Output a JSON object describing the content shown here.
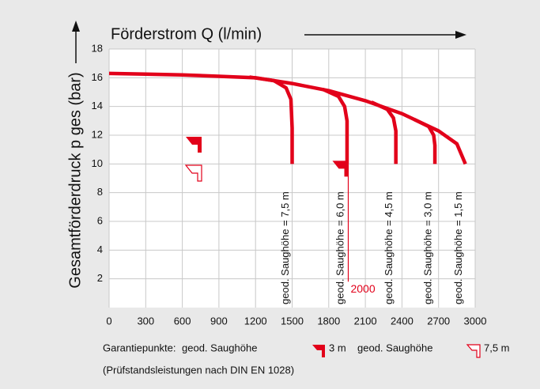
{
  "chart_data": {
    "type": "line",
    "x_label": "Förderstrom Q (l/min)",
    "y_label": "Gesamtförderdruck p ges (bar)",
    "xlim": [
      0,
      3000
    ],
    "ylim": [
      0,
      18
    ],
    "xticks": [
      0,
      300,
      600,
      900,
      1200,
      1500,
      1800,
      2100,
      2400,
      2700,
      3000
    ],
    "yticks": [
      2,
      4,
      6,
      8,
      10,
      12,
      14,
      16,
      18
    ],
    "grid": true,
    "series": [
      {
        "name": "geod. Saughöhe = 1,5 m",
        "color": "#e2001a",
        "x": [
          0,
          300,
          600,
          900,
          1200,
          1500,
          1800,
          2100,
          2400,
          2700,
          2850,
          2920
        ],
        "values": [
          16.3,
          16.25,
          16.2,
          16.1,
          16.0,
          15.6,
          15.1,
          14.4,
          13.5,
          12.3,
          11.4,
          10
        ]
      },
      {
        "name": "geod. Saughöhe = 7,5 m",
        "color": "#e2001a",
        "x": [
          1150,
          1350,
          1450,
          1490,
          1500,
          1500
        ],
        "values": [
          16.05,
          15.8,
          15.3,
          14.5,
          12.5,
          10
        ]
      },
      {
        "name": "geod. Saughöhe = 6,0 m",
        "color": "#e2001a",
        "x": [
          1750,
          1880,
          1930,
          1950,
          1950
        ],
        "values": [
          15.2,
          14.7,
          14.0,
          13,
          10
        ]
      },
      {
        "name": "geod. Saughöhe = 4,5 m",
        "color": "#e2001a",
        "x": [
          2150,
          2280,
          2330,
          2350,
          2350
        ],
        "values": [
          14.3,
          13.8,
          13.2,
          12.3,
          10
        ]
      },
      {
        "name": "geod. Saughöhe = 3,0 m",
        "color": "#e2001a",
        "x": [
          2500,
          2620,
          2660,
          2670,
          2670
        ],
        "values": [
          13.1,
          12.6,
          12.0,
          11.3,
          10
        ]
      }
    ],
    "guarantee_point": {
      "x": 1960,
      "y": 10,
      "line_to": 1.8,
      "label": "2000"
    },
    "legend": {
      "prefix": "Garantiepunkte:",
      "items": [
        {
          "label": "geod. Saughöhe",
          "value": "3 m"
        },
        {
          "label": "geod. Saughöhe",
          "value": "7,5 m"
        }
      ]
    },
    "note": "(Prüfstandsleistungen nach DIN EN 1028)"
  }
}
